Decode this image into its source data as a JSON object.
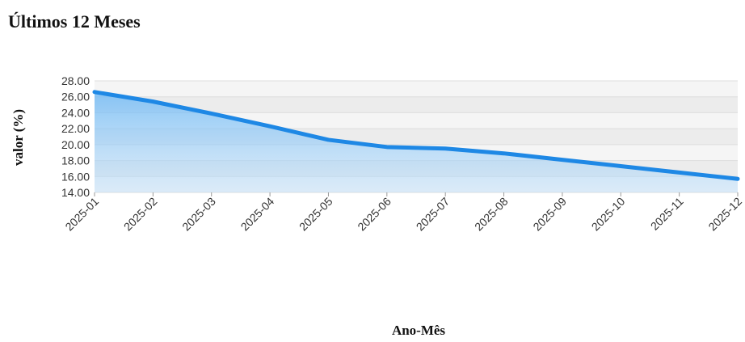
{
  "page": {
    "title": "Últimos 12 Meses"
  },
  "chart_data": {
    "type": "area",
    "title": "Últimos 12 Meses",
    "xlabel": "Ano-Mês",
    "ylabel": "valor (%)",
    "categories": [
      "2025-01",
      "2025-02",
      "2025-03",
      "2025-04",
      "2025-05",
      "2025-06",
      "2025-07",
      "2025-08",
      "2025-09",
      "2025-10",
      "2025-11",
      "2025-12"
    ],
    "series": [
      {
        "values": [
          26.6,
          25.4,
          23.9,
          22.3,
          20.6,
          19.7,
          19.5,
          18.9,
          18.1,
          17.3,
          16.5,
          15.7
        ]
      }
    ],
    "ylim": [
      14,
      28
    ],
    "yticks": [
      28,
      26,
      24,
      22,
      20,
      18,
      16,
      14
    ],
    "ytick_labels": [
      "28.00",
      "26.00",
      "24.00",
      "22.00",
      "20.00",
      "18.00",
      "16.00",
      "14.00"
    ],
    "grid": true,
    "line_color": "#1e88e5",
    "fill_color": "#64b5f6"
  }
}
